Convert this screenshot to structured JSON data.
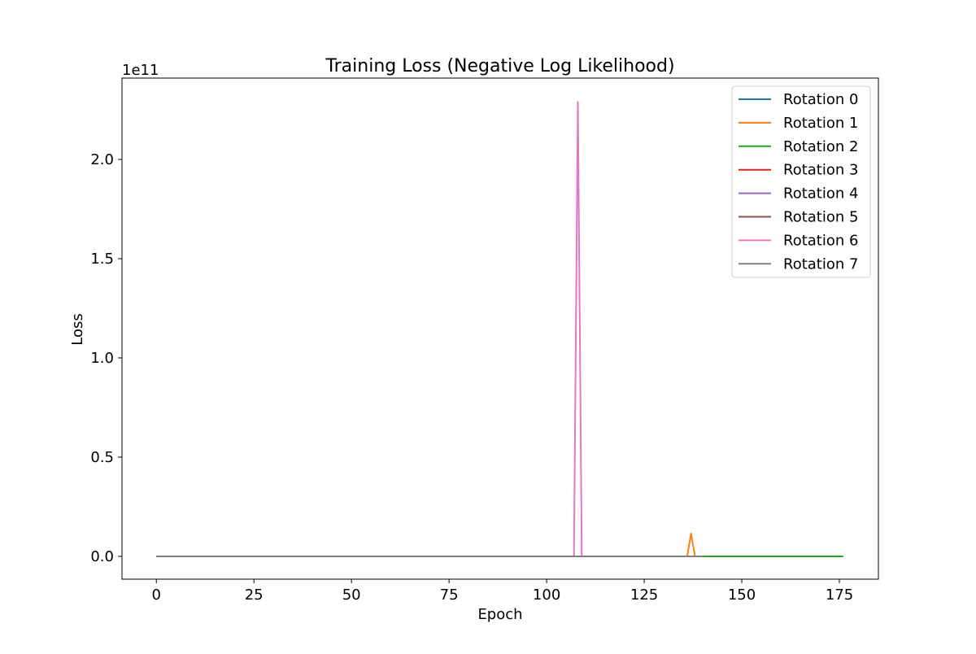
{
  "chart_data": {
    "type": "line",
    "title": "Training Loss (Negative Log Likelihood)",
    "xlabel": "Epoch",
    "ylabel": "Loss",
    "y_offset_label": "1e11",
    "y_scale_factor": 100000000000,
    "xlim": [
      -8.8,
      185
    ],
    "ylim": [
      -11500000000,
      241000000000
    ],
    "xticks": [
      0,
      25,
      50,
      75,
      100,
      125,
      150,
      175
    ],
    "xtick_labels": [
      "0",
      "25",
      "50",
      "75",
      "100",
      "125",
      "150",
      "175"
    ],
    "yticks": [
      0,
      50000000000,
      100000000000,
      150000000000,
      200000000000
    ],
    "ytick_labels": [
      "0.0",
      "0.5",
      "1.0",
      "1.5",
      "2.0"
    ],
    "grid": false,
    "legend_position": "top-right",
    "series": [
      {
        "name": "Rotation 0",
        "color": "#1f77b4",
        "x": [
          0,
          140
        ],
        "y": [
          0,
          0
        ]
      },
      {
        "name": "Rotation 1",
        "color": "#ff7f0e",
        "x": [
          0,
          136,
          137,
          138,
          140
        ],
        "y": [
          0,
          0,
          11500000000,
          0,
          0
        ]
      },
      {
        "name": "Rotation 2",
        "color": "#2ca02c",
        "x": [
          0,
          176
        ],
        "y": [
          0,
          0
        ]
      },
      {
        "name": "Rotation 3",
        "color": "#d62728",
        "x": [
          0,
          140
        ],
        "y": [
          0,
          0
        ]
      },
      {
        "name": "Rotation 4",
        "color": "#9467bd",
        "x": [
          0,
          140
        ],
        "y": [
          0,
          0
        ]
      },
      {
        "name": "Rotation 5",
        "color": "#8c564b",
        "x": [
          0,
          140
        ],
        "y": [
          0,
          0
        ]
      },
      {
        "name": "Rotation 6",
        "color": "#e377c2",
        "x": [
          0,
          107,
          108,
          109,
          140
        ],
        "y": [
          0,
          0,
          229000000000,
          0,
          0
        ]
      },
      {
        "name": "Rotation 7",
        "color": "#7f7f7f",
        "x": [
          0,
          140
        ],
        "y": [
          0,
          0
        ]
      }
    ]
  }
}
